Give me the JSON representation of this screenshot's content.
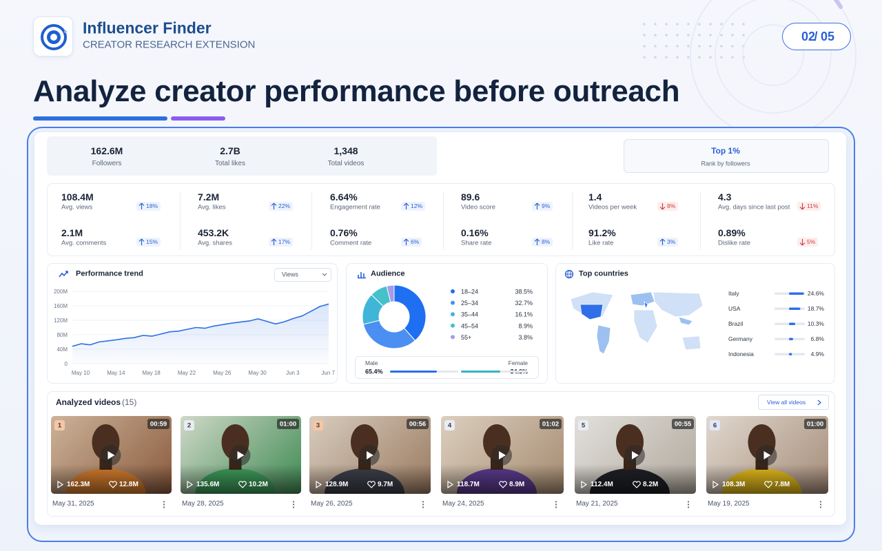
{
  "header": {
    "app_name": "Influencer Finder",
    "app_tagline": "CREATOR RESEARCH EXTENSION",
    "page": {
      "current": "02",
      "separator": "/",
      "total": "05"
    },
    "headline": "Analyze creator performance before outreach"
  },
  "summary": [
    {
      "value": "162.6M",
      "label": "Followers"
    },
    {
      "value": "2.7B",
      "label": "Total likes"
    },
    {
      "value": "1,348",
      "label": "Total videos"
    }
  ],
  "rank": {
    "value": "Top 1%",
    "label": "Rank by followers"
  },
  "metrics": [
    [
      {
        "value": "108.4M",
        "label": "Avg. views",
        "change": "18%",
        "direction": "up"
      },
      {
        "value": "7.2M",
        "label": "Avg. likes",
        "change": "22%",
        "direction": "up"
      },
      {
        "value": "6.64%",
        "label": "Engagement rate",
        "change": "12%",
        "direction": "up"
      },
      {
        "value": "89.6",
        "label": "Video score",
        "change": "9%",
        "direction": "up"
      },
      {
        "value": "1.4",
        "label": "Videos per week",
        "change": "8%",
        "direction": "down"
      },
      {
        "value": "4.3",
        "label": "Avg. days since last post",
        "change": "11%",
        "direction": "down"
      }
    ],
    [
      {
        "value": "2.1M",
        "label": "Avg. comments",
        "change": "15%",
        "direction": "up"
      },
      {
        "value": "453.2K",
        "label": "Avg. shares",
        "change": "17%",
        "direction": "up"
      },
      {
        "value": "0.76%",
        "label": "Comment rate",
        "change": "6%",
        "direction": "up"
      },
      {
        "value": "0.16%",
        "label": "Share rate",
        "change": "8%",
        "direction": "up"
      },
      {
        "value": "91.2%",
        "label": "Like rate",
        "change": "3%",
        "direction": "up"
      },
      {
        "value": "0.89%",
        "label": "Dislike rate",
        "change": "5%",
        "direction": "down"
      }
    ]
  ],
  "chart_data": [
    {
      "type": "line",
      "title": "Performance trend",
      "metric": "Views",
      "categories": [
        "May 10",
        null,
        null,
        null,
        "May 14",
        null,
        null,
        null,
        "May 18",
        null,
        null,
        null,
        "May 22",
        null,
        null,
        null,
        "May 26",
        null,
        null,
        null,
        "May 30",
        null,
        null,
        null,
        "Jun 3",
        null,
        null,
        null,
        "Jun 7",
        null
      ],
      "values": [
        48,
        55,
        52,
        60,
        63,
        66,
        70,
        72,
        78,
        76,
        82,
        88,
        90,
        95,
        100,
        98,
        104,
        108,
        112,
        115,
        118,
        124,
        117,
        110,
        116,
        125,
        132,
        145,
        158,
        165
      ],
      "color": "#2a6fe6",
      "ylim": [
        0,
        200
      ],
      "yticks": [
        0,
        {
          "value": 40,
          "label": "40M"
        },
        {
          "value": 80,
          "label": "80M"
        },
        {
          "value": 120,
          "label": "120M"
        },
        {
          "value": 160,
          "label": "160M"
        },
        {
          "value": 200,
          "label": "200M"
        }
      ],
      "grid": true
    },
    {
      "type": "pie",
      "title": "Audience",
      "categories": [
        "18–24",
        "25–34",
        "35–44",
        "45–54",
        "55+"
      ],
      "values": [
        38.5,
        32.7,
        16.1,
        8.9,
        3.8
      ],
      "value_labels": [
        "38.5%",
        "32.7%",
        "16.1%",
        "8.9%",
        "3.8%"
      ],
      "colors": [
        "#1e6ff1",
        "#4b8ff3",
        "#40b5d8",
        "#45c1c9",
        "#a59be8"
      ]
    },
    {
      "type": "bar",
      "orientation": "horizontal",
      "title": "Top countries",
      "categories": [
        "Italy",
        "USA",
        "Brazil",
        "Germany",
        "Indonesia"
      ],
      "values": [
        24.6,
        18.7,
        10.3,
        6.8,
        4.9
      ],
      "value_labels": [
        "24.6%",
        "18.7%",
        "10.3%",
        "6.8%",
        "4.9%"
      ],
      "color": "#2f6fe8",
      "xlim": [
        0,
        50
      ]
    }
  ],
  "gender": {
    "labels": [
      "Male",
      "Female"
    ],
    "values": [
      65.4,
      34.6
    ],
    "value_labels": [
      "65.4%",
      "34.6%"
    ],
    "colors": [
      "#2a6fe6",
      "#35b3c4"
    ]
  },
  "videos": {
    "title": "Analyzed videos",
    "count": "(15)",
    "view_all": "View all videos",
    "items": [
      {
        "rank": "1",
        "duration": "00:59",
        "views": "162.3M",
        "likes": "12.8M",
        "date": "May 31, 2025"
      },
      {
        "rank": "2",
        "duration": "01:00",
        "views": "135.6M",
        "likes": "10.2M",
        "date": "May 28, 2025"
      },
      {
        "rank": "3",
        "duration": "00:56",
        "views": "128.9M",
        "likes": "9.7M",
        "date": "May 26, 2025"
      },
      {
        "rank": "4",
        "duration": "01:02",
        "views": "118.7M",
        "likes": "8.9M",
        "date": "May 24, 2025"
      },
      {
        "rank": "5",
        "duration": "00:55",
        "views": "112.4M",
        "likes": "8.2M",
        "date": "May 21, 2025"
      },
      {
        "rank": "6",
        "duration": "01:00",
        "views": "108.3M",
        "likes": "7.8M",
        "date": "May 19, 2025"
      }
    ]
  }
}
